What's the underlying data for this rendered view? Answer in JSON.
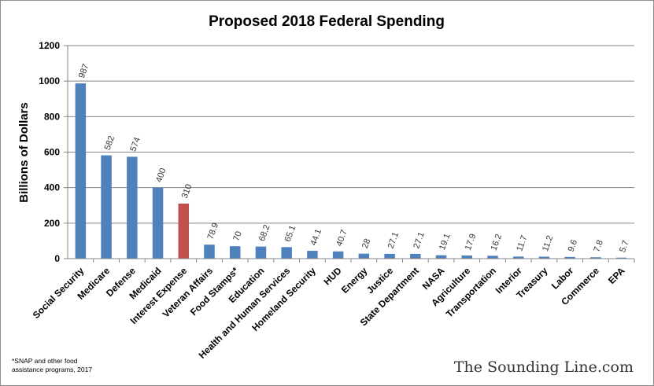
{
  "chart_data": {
    "type": "bar",
    "title": "Proposed 2018 Federal Spending",
    "xlabel": "",
    "ylabel": "Billions of Dollars",
    "ylim": [
      0,
      1200
    ],
    "yticks": [
      0,
      200,
      400,
      600,
      800,
      1000,
      1200
    ],
    "grid": true,
    "legend": "none",
    "categories": [
      "Social Security",
      "Medicare",
      "Defense",
      "Medicaid",
      "Interest Expense",
      "Veteran Affairs",
      "Food Stamps*",
      "Education",
      "Health and Human Services",
      "Homeland Security",
      "HUD",
      "Energy",
      "Justice",
      "State Department",
      "NASA",
      "Agriculture",
      "Transportation",
      "Interior",
      "Treasury",
      "Labor",
      "Commerce",
      "EPA"
    ],
    "values": [
      987,
      582,
      574,
      400,
      310,
      78.9,
      70,
      68.2,
      65.1,
      44.1,
      40.7,
      28,
      27.1,
      27.1,
      19.1,
      17.9,
      16.2,
      11.7,
      11.2,
      9.6,
      7.8,
      5.7
    ],
    "value_labels": [
      "987",
      "582",
      "574",
      "400",
      "310",
      "78.9",
      "70",
      "68.2",
      "65.1",
      "44.1",
      "40.7",
      "28",
      "27.1",
      "27.1",
      "19.1",
      "17.9",
      "16.2",
      "11.7",
      "11.2",
      "9.6",
      "7.8",
      "5.7"
    ],
    "bar_colors": [
      "#4f81bd",
      "#4f81bd",
      "#4f81bd",
      "#4f81bd",
      "#c0504d",
      "#4f81bd",
      "#4f81bd",
      "#4f81bd",
      "#4f81bd",
      "#4f81bd",
      "#4f81bd",
      "#4f81bd",
      "#4f81bd",
      "#4f81bd",
      "#4f81bd",
      "#4f81bd",
      "#4f81bd",
      "#4f81bd",
      "#4f81bd",
      "#4f81bd",
      "#4f81bd",
      "#4f81bd"
    ],
    "footnote_lines": [
      "*SNAP and other food",
      "assistance programs, 2017"
    ]
  },
  "watermark": "The Sounding Line.com"
}
